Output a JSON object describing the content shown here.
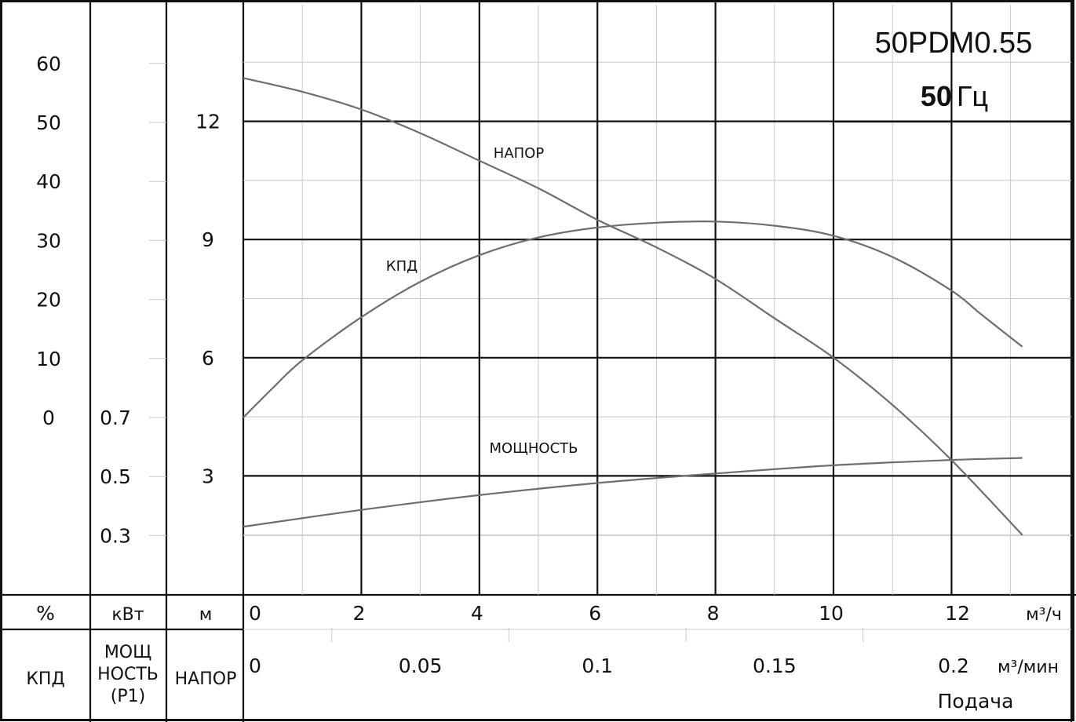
{
  "chart_data": {
    "type": "line",
    "model": "50PDM0.55",
    "frequency_value": "50",
    "frequency_unit": "Гц",
    "x_flow_m3h": {
      "ticks": [
        "0",
        "2",
        "4",
        "6",
        "8",
        "10",
        "12"
      ],
      "unit": "м³/ч",
      "range": [
        0,
        13
      ]
    },
    "x_flow_m3min": {
      "ticks": [
        "0",
        "0.05",
        "0.1",
        "0.15",
        "0.2"
      ],
      "unit": "м³/мин",
      "title": "Подача"
    },
    "y_efficiency": {
      "unit": "%",
      "name": "КПД",
      "ticks": [
        "60",
        "50",
        "40",
        "30",
        "20",
        "10",
        "0"
      ],
      "range": [
        0,
        60
      ]
    },
    "y_power": {
      "unit": "кВт",
      "name": "МОЩНОСТЬ (P1)",
      "name_lines": [
        "МОЩ",
        "НОСТЬ",
        "(P1)"
      ],
      "ticks": [
        "0.7",
        "0.5",
        "0.3"
      ],
      "range": [
        0.3,
        0.7
      ]
    },
    "y_head": {
      "unit": "м",
      "name": "НАПОР",
      "ticks": [
        "12",
        "9",
        "6",
        "3"
      ],
      "range": [
        0,
        15
      ]
    },
    "series": [
      {
        "name": "НАПОР",
        "axis": "head",
        "x": [
          0,
          1,
          2,
          3,
          4,
          5,
          6,
          7,
          8,
          9,
          10,
          11,
          12,
          13.2
        ],
        "y": [
          13.1,
          12.75,
          12.3,
          11.7,
          11.0,
          10.3,
          9.5,
          8.8,
          8.0,
          7.0,
          6.0,
          4.8,
          3.4,
          1.5
        ]
      },
      {
        "name": "КПД",
        "axis": "efficiency",
        "x": [
          0,
          0.5,
          1,
          2,
          3,
          4,
          5,
          6,
          7,
          8,
          9,
          10,
          11,
          12,
          12.5,
          13.2
        ],
        "y": [
          0,
          5,
          9.7,
          17,
          23,
          27.5,
          30.5,
          32.2,
          33,
          33.2,
          32.5,
          30.8,
          27.2,
          21.5,
          17.5,
          12
        ]
      },
      {
        "name": "МОЩНОСТЬ",
        "axis": "power",
        "x": [
          0,
          2,
          4,
          6,
          8,
          10,
          12,
          13.2
        ],
        "y": [
          0.33,
          0.387,
          0.437,
          0.478,
          0.51,
          0.538,
          0.556,
          0.563
        ]
      }
    ]
  }
}
